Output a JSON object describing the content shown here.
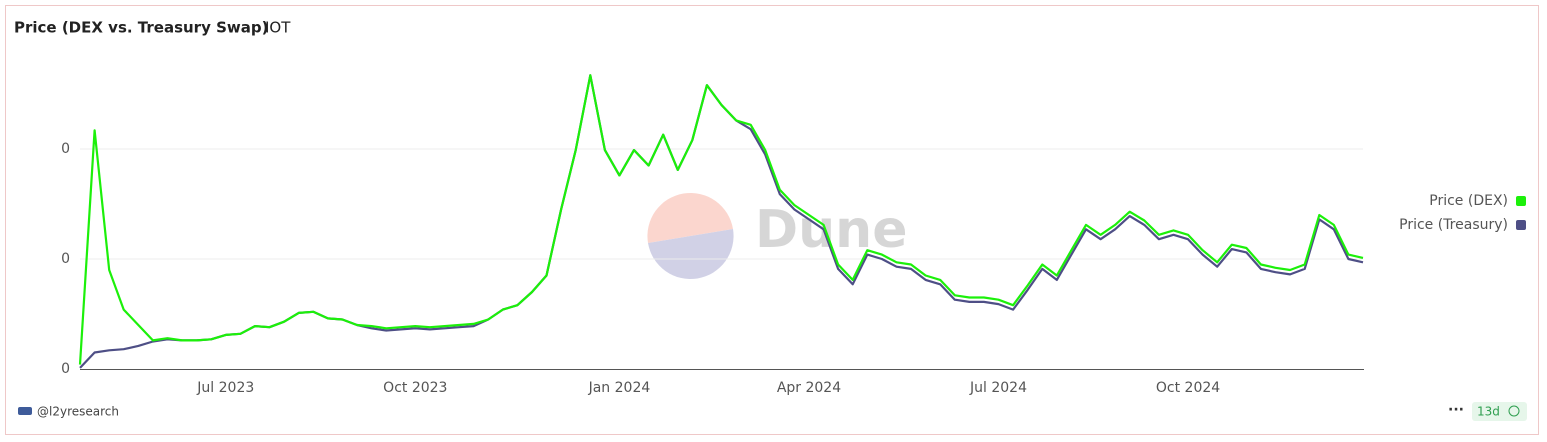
{
  "chart_data": {
    "type": "line",
    "title": "Price (DEX vs. Treasury Swap)",
    "subtitle": "IOT",
    "watermark": "Dune",
    "categories": [
      null,
      null,
      null,
      null,
      null,
      null,
      null,
      null,
      null,
      null,
      "Jul 2023",
      null,
      null,
      null,
      null,
      null,
      null,
      null,
      null,
      null,
      null,
      null,
      null,
      "Oct 2023",
      null,
      null,
      null,
      null,
      null,
      null,
      null,
      null,
      null,
      null,
      null,
      null,
      null,
      "Jan 2024",
      null,
      null,
      null,
      null,
      null,
      null,
      null,
      null,
      null,
      null,
      null,
      null,
      "Apr 2024",
      null,
      null,
      null,
      null,
      null,
      null,
      null,
      null,
      null,
      null,
      null,
      null,
      "Jul 2024",
      null,
      null,
      null,
      null,
      null,
      null,
      null,
      null,
      null,
      null,
      null,
      null,
      "Oct 2024",
      null,
      null,
      null,
      null,
      null,
      null,
      null,
      null,
      null,
      null,
      null,
      null
    ],
    "series": [
      {
        "name": "Price (DEX)",
        "color": "#1cf00a",
        "values": [
          4e-05,
          0.00217,
          0.0009,
          0.00054,
          0.0004,
          0.00026,
          0.00028,
          0.00026,
          0.00026,
          0.00027,
          0.00031,
          0.00032,
          0.00039,
          0.00038,
          0.00043,
          0.00051,
          0.00052,
          0.00046,
          0.00045,
          0.0004,
          0.00039,
          0.00037,
          0.00038,
          0.00039,
          0.00038,
          0.00039,
          0.0004,
          0.00041,
          0.00045,
          0.00054,
          0.00058,
          0.0007,
          0.00085,
          0.00145,
          0.00199,
          0.00267,
          0.00199,
          0.00176,
          0.00199,
          0.00185,
          0.00213,
          0.00181,
          0.00208,
          0.00258,
          0.0024,
          0.00226,
          0.00222,
          0.00199,
          0.00163,
          0.00149,
          0.0014,
          0.00131,
          0.00095,
          0.00081,
          0.00108,
          0.00104,
          0.00097,
          0.00095,
          0.00085,
          0.00081,
          0.00067,
          0.00065,
          0.00065,
          0.00063,
          0.00058,
          0.00076,
          0.00095,
          0.00085,
          0.00108,
          0.00131,
          0.00122,
          0.00131,
          0.00143,
          0.00135,
          0.00122,
          0.00126,
          0.00122,
          0.00108,
          0.00097,
          0.00113,
          0.0011,
          0.00095,
          0.00092,
          0.0009,
          0.00095,
          0.0014,
          0.00131,
          0.00104,
          0.00101
        ]
      },
      {
        "name": "Price (Treasury)",
        "color": "#4e4f86",
        "values": [
          1e-05,
          0.00015,
          0.00017,
          0.00018,
          0.00021,
          0.00025,
          0.00027,
          0.00026,
          0.00026,
          0.00027,
          0.00031,
          0.00032,
          0.00039,
          0.00038,
          0.00043,
          0.00051,
          0.00052,
          0.00046,
          0.00045,
          0.0004,
          0.00037,
          0.00035,
          0.00036,
          0.00037,
          0.00036,
          0.00037,
          0.00038,
          0.00039,
          0.00045,
          0.00054,
          0.00058,
          0.0007,
          0.00085,
          0.00145,
          0.00199,
          0.00267,
          0.00199,
          0.00176,
          0.00199,
          0.00185,
          0.00213,
          0.00181,
          0.00208,
          0.00258,
          0.0024,
          0.00226,
          0.00218,
          0.00195,
          0.00159,
          0.00145,
          0.00136,
          0.00127,
          0.00091,
          0.00077,
          0.00104,
          0.001,
          0.00093,
          0.00091,
          0.00081,
          0.00077,
          0.00063,
          0.00061,
          0.00061,
          0.00059,
          0.00054,
          0.00072,
          0.00091,
          0.00081,
          0.00104,
          0.00127,
          0.00118,
          0.00127,
          0.00139,
          0.00131,
          0.00118,
          0.00122,
          0.00118,
          0.00104,
          0.00093,
          0.00109,
          0.00106,
          0.00091,
          0.00088,
          0.00086,
          0.00091,
          0.00136,
          0.00127,
          0.001,
          0.00097
        ]
      }
    ],
    "ylim": [
      0,
      0.0029
    ],
    "yticks": [
      {
        "value": 0,
        "label": "0"
      },
      {
        "value": 0.001,
        "label": "0"
      },
      {
        "value": 0.002,
        "label": "0"
      }
    ],
    "grid": true
  },
  "footer": {
    "author": "@l2yresearch",
    "age": "13d"
  }
}
